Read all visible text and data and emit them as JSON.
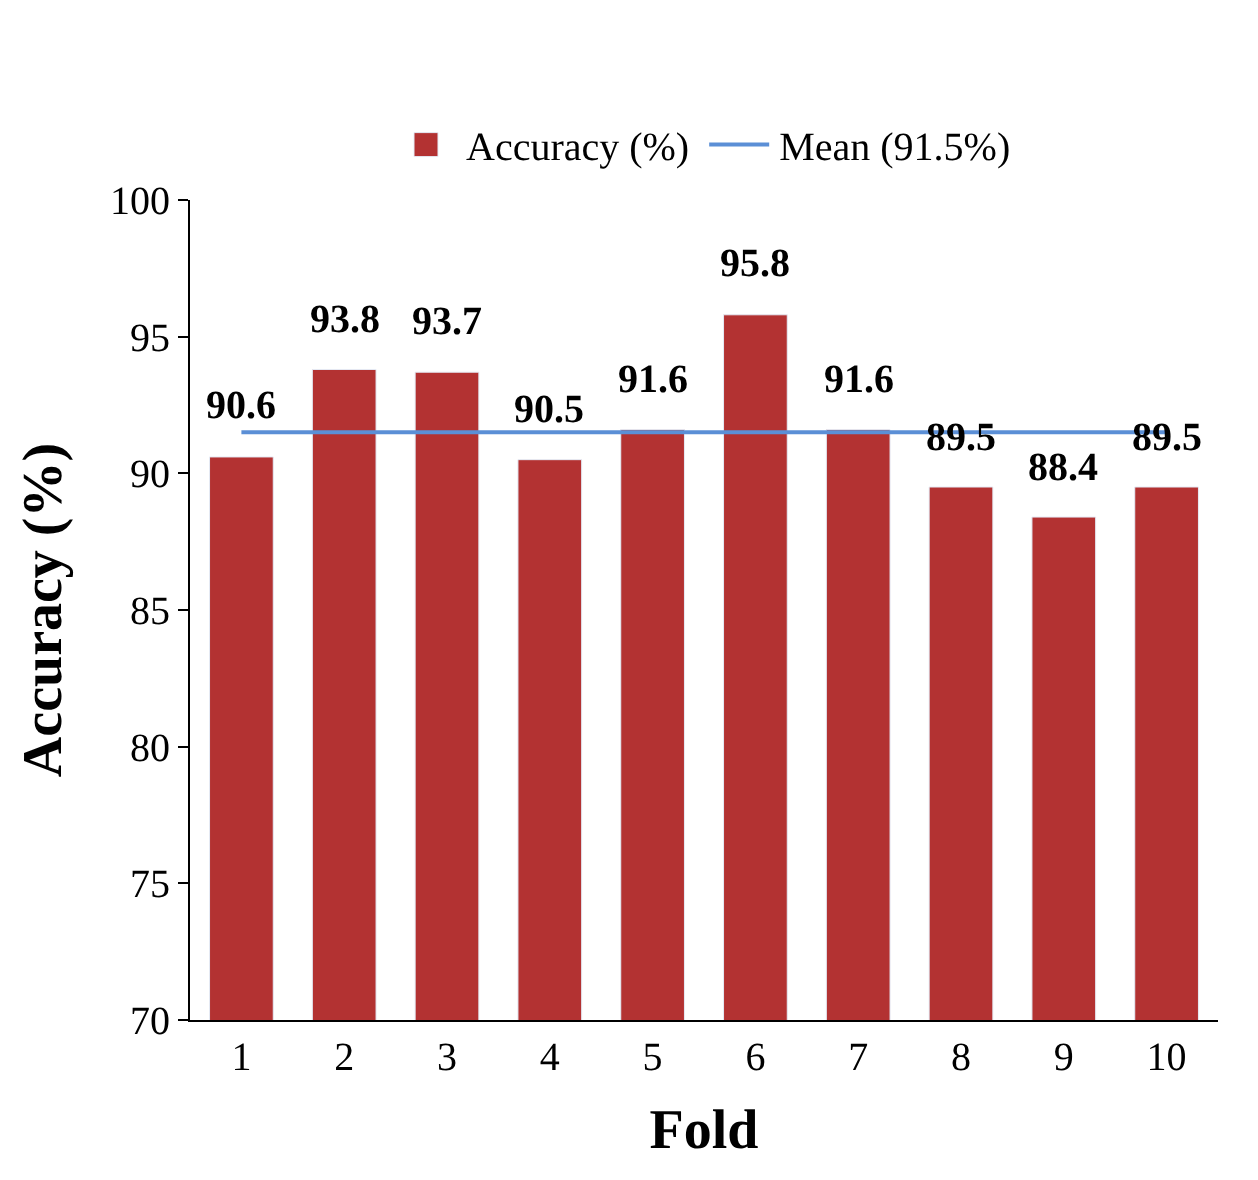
{
  "chart_data": {
    "type": "bar",
    "xlabel": "Fold",
    "ylabel": "Accuracy (%)",
    "categories": [
      "1",
      "2",
      "3",
      "4",
      "5",
      "6",
      "7",
      "8",
      "9",
      "10"
    ],
    "series": [
      {
        "name": "Accuracy (%)",
        "color": "#b33232",
        "values": [
          90.6,
          93.8,
          93.7,
          90.5,
          91.6,
          95.8,
          91.6,
          89.5,
          88.4,
          89.5
        ],
        "value_labels": [
          "90.6",
          "93.8",
          "93.7",
          "90.5",
          "91.6",
          "95.8",
          "91.6",
          "89.5",
          "88.4",
          "89.5"
        ]
      },
      {
        "name": "Mean (91.5%)",
        "type": "line",
        "color": "#5b8fd6",
        "values": [
          91.5,
          91.5,
          91.5,
          91.5,
          91.5,
          91.5,
          91.5,
          91.5,
          91.5,
          91.5
        ]
      }
    ],
    "ylim": [
      70,
      100
    ],
    "yticks": [
      70,
      75,
      80,
      85,
      90,
      95,
      100
    ],
    "legend": "top",
    "marker": "none",
    "line_style": "solid"
  }
}
